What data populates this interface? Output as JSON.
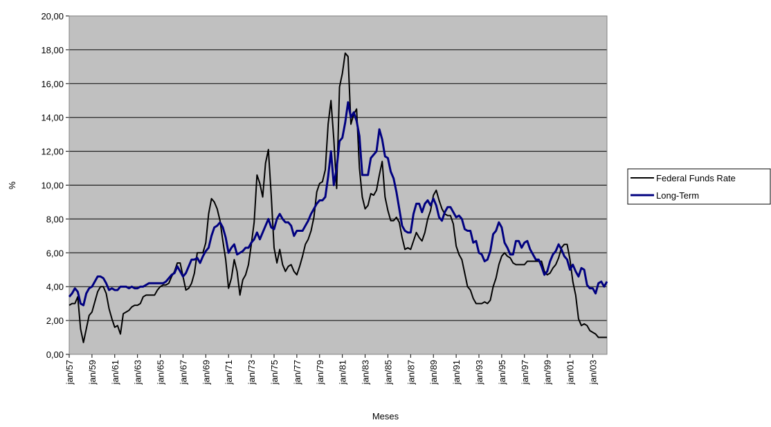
{
  "chart_data": {
    "type": "line",
    "xlabel": "Meses",
    "ylabel": "%",
    "categories": [
      "jan/57",
      null,
      null,
      null,
      null,
      null,
      null,
      null,
      "jan/59",
      null,
      null,
      null,
      null,
      null,
      null,
      null,
      "jan/61",
      null,
      null,
      null,
      null,
      null,
      null,
      null,
      "jan/63",
      null,
      null,
      null,
      null,
      null,
      null,
      null,
      "jan/65",
      null,
      null,
      null,
      null,
      null,
      null,
      null,
      "jan/67",
      null,
      null,
      null,
      null,
      null,
      null,
      null,
      "jan/69",
      null,
      null,
      null,
      null,
      null,
      null,
      null,
      "jan/71",
      null,
      null,
      null,
      null,
      null,
      null,
      null,
      "jan/73",
      null,
      null,
      null,
      null,
      null,
      null,
      null,
      "jan/75",
      null,
      null,
      null,
      null,
      null,
      null,
      null,
      "jan/77",
      null,
      null,
      null,
      null,
      null,
      null,
      null,
      "jan/79",
      null,
      null,
      null,
      null,
      null,
      null,
      null,
      "jan/81",
      null,
      null,
      null,
      null,
      null,
      null,
      null,
      "jan/83",
      null,
      null,
      null,
      null,
      null,
      null,
      null,
      "jan/85",
      null,
      null,
      null,
      null,
      null,
      null,
      null,
      "jan/87",
      null,
      null,
      null,
      null,
      null,
      null,
      null,
      "jan/89",
      null,
      null,
      null,
      null,
      null,
      null,
      null,
      "jan/91",
      null,
      null,
      null,
      null,
      null,
      null,
      null,
      "jan/93",
      null,
      null,
      null,
      null,
      null,
      null,
      null,
      "jan/95",
      null,
      null,
      null,
      null,
      null,
      null,
      null,
      "jan/97",
      null,
      null,
      null,
      null,
      null,
      null,
      null,
      "jan/99",
      null,
      null,
      null,
      null,
      null,
      null,
      null,
      "jan/01",
      null,
      null,
      null,
      null,
      null,
      null,
      null,
      "jan/03",
      null,
      null,
      null,
      null,
      null
    ],
    "series": [
      {
        "name": "Federal Funds Rate",
        "color": "#000000",
        "values": [
          2.9,
          3.0,
          3.0,
          3.4,
          1.5,
          0.7,
          1.5,
          2.3,
          2.5,
          3.1,
          3.7,
          4.0,
          4.0,
          3.6,
          2.7,
          2.1,
          1.6,
          1.7,
          1.2,
          2.4,
          2.5,
          2.6,
          2.8,
          2.9,
          2.9,
          3.0,
          3.4,
          3.5,
          3.5,
          3.5,
          3.5,
          3.8,
          4.0,
          4.1,
          4.1,
          4.2,
          4.6,
          4.9,
          5.4,
          5.4,
          4.6,
          3.8,
          3.9,
          4.2,
          4.8,
          6.0,
          6.0,
          6.0,
          6.6,
          8.3,
          9.2,
          9.0,
          8.6,
          7.9,
          6.7,
          5.6,
          3.9,
          4.5,
          5.6,
          4.9,
          3.5,
          4.4,
          4.7,
          5.3,
          6.5,
          7.8,
          10.6,
          10.1,
          9.3,
          11.3,
          12.1,
          9.4,
          6.3,
          5.4,
          6.2,
          5.3,
          4.9,
          5.2,
          5.3,
          4.9,
          4.7,
          5.2,
          5.8,
          6.5,
          6.8,
          7.3,
          8.1,
          9.6,
          10.1,
          10.2,
          10.9,
          13.6,
          15.0,
          12.7,
          9.8,
          15.8,
          16.6,
          17.8,
          17.6,
          13.6,
          14.2,
          14.5,
          11.0,
          9.3,
          8.6,
          8.8,
          9.5,
          9.4,
          9.7,
          10.6,
          11.4,
          9.3,
          8.5,
          7.9,
          7.9,
          8.1,
          7.8,
          6.9,
          6.2,
          6.3,
          6.2,
          6.7,
          7.2,
          6.9,
          6.7,
          7.2,
          8.0,
          8.5,
          9.4,
          9.7,
          9.1,
          8.6,
          8.3,
          8.2,
          8.2,
          7.7,
          6.4,
          5.9,
          5.6,
          4.8,
          4.0,
          3.8,
          3.3,
          3.0,
          3.0,
          3.0,
          3.1,
          3.0,
          3.2,
          4.0,
          4.5,
          5.3,
          5.8,
          6.0,
          5.8,
          5.7,
          5.4,
          5.3,
          5.3,
          5.3,
          5.3,
          5.5,
          5.5,
          5.5,
          5.5,
          5.5,
          5.5,
          4.9,
          4.7,
          4.8,
          5.1,
          5.3,
          5.7,
          6.3,
          6.5,
          6.5,
          5.6,
          4.3,
          3.5,
          2.1,
          1.7,
          1.8,
          1.7,
          1.4,
          1.3,
          1.2,
          1.0,
          1.0,
          1.0,
          1.0
        ]
      },
      {
        "name": "Long-Term",
        "color": "#000080",
        "values": [
          3.4,
          3.6,
          3.9,
          3.7,
          3.0,
          2.9,
          3.6,
          3.9,
          4.0,
          4.3,
          4.6,
          4.6,
          4.5,
          4.2,
          3.8,
          3.9,
          3.8,
          3.8,
          4.0,
          4.0,
          4.0,
          3.9,
          4.0,
          3.9,
          3.9,
          4.0,
          4.0,
          4.1,
          4.2,
          4.2,
          4.2,
          4.2,
          4.2,
          4.2,
          4.3,
          4.5,
          4.7,
          4.8,
          5.2,
          4.9,
          4.6,
          4.8,
          5.2,
          5.6,
          5.6,
          5.7,
          5.4,
          5.8,
          6.1,
          6.3,
          7.0,
          7.5,
          7.6,
          7.8,
          7.5,
          6.9,
          6.0,
          6.3,
          6.5,
          5.9,
          6.0,
          6.1,
          6.3,
          6.3,
          6.6,
          6.8,
          7.2,
          6.8,
          7.2,
          7.6,
          8.0,
          7.5,
          7.4,
          8.0,
          8.3,
          8.0,
          7.8,
          7.8,
          7.6,
          7.0,
          7.3,
          7.3,
          7.3,
          7.6,
          7.9,
          8.3,
          8.6,
          8.9,
          9.1,
          9.1,
          9.3,
          10.5,
          12.0,
          10.0,
          11.0,
          12.6,
          12.8,
          13.7,
          14.9,
          14.0,
          14.3,
          13.8,
          12.9,
          10.6,
          10.6,
          10.6,
          11.6,
          11.8,
          12.0,
          13.3,
          12.7,
          11.7,
          11.6,
          10.8,
          10.4,
          9.6,
          8.6,
          7.6,
          7.3,
          7.2,
          7.2,
          8.3,
          8.9,
          8.9,
          8.4,
          8.9,
          9.1,
          8.8,
          9.2,
          8.8,
          8.1,
          7.9,
          8.4,
          8.7,
          8.7,
          8.4,
          8.1,
          8.2,
          8.0,
          7.4,
          7.3,
          7.3,
          6.6,
          6.7,
          6.0,
          5.9,
          5.5,
          5.6,
          6.1,
          7.1,
          7.3,
          7.8,
          7.5,
          6.6,
          6.3,
          5.9,
          5.9,
          6.7,
          6.7,
          6.3,
          6.6,
          6.7,
          6.2,
          5.9,
          5.6,
          5.6,
          5.2,
          4.7,
          4.9,
          5.5,
          5.9,
          6.1,
          6.5,
          6.2,
          5.8,
          5.6,
          5.0,
          5.3,
          4.9,
          4.6,
          5.1,
          5.0,
          4.1,
          3.9,
          3.9,
          3.6,
          4.2,
          4.3,
          4.0,
          4.3
        ]
      }
    ],
    "ylim": [
      0,
      20
    ],
    "yticks": [
      {
        "value": 0,
        "label": "0,00"
      },
      {
        "value": 2,
        "label": "2,00"
      },
      {
        "value": 4,
        "label": "4,00"
      },
      {
        "value": 6,
        "label": "6,00"
      },
      {
        "value": 8,
        "label": "8,00"
      },
      {
        "value": 10,
        "label": "10,00"
      },
      {
        "value": 12,
        "label": "12,00"
      },
      {
        "value": 14,
        "label": "14,00"
      },
      {
        "value": 16,
        "label": "16,00"
      },
      {
        "value": 18,
        "label": "18,00"
      },
      {
        "value": 20,
        "label": "20,00"
      }
    ],
    "grid": true,
    "legend": "right"
  }
}
